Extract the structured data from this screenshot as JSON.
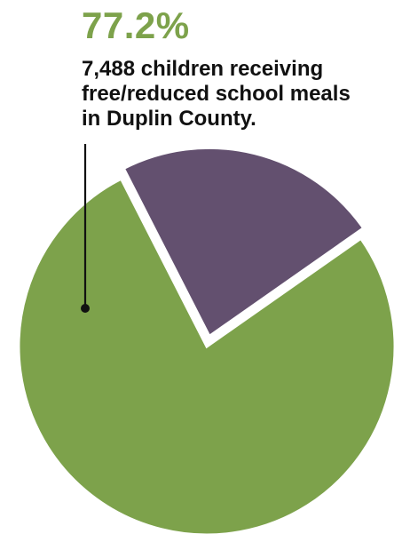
{
  "chart_data": {
    "type": "pie",
    "slices": [
      {
        "value": 77.2,
        "color": "#7da24b",
        "exploded": false
      },
      {
        "value": 22.8,
        "color": "#63506f",
        "exploded": true
      }
    ],
    "annotation": {
      "value_text": "77.2%",
      "text": "7,488 children receiving\nfree/reduced school meals\nin Duplin County."
    }
  },
  "colors": {
    "accent": "#7da24b",
    "secondary": "#63506f",
    "callout_line": "#111111"
  }
}
